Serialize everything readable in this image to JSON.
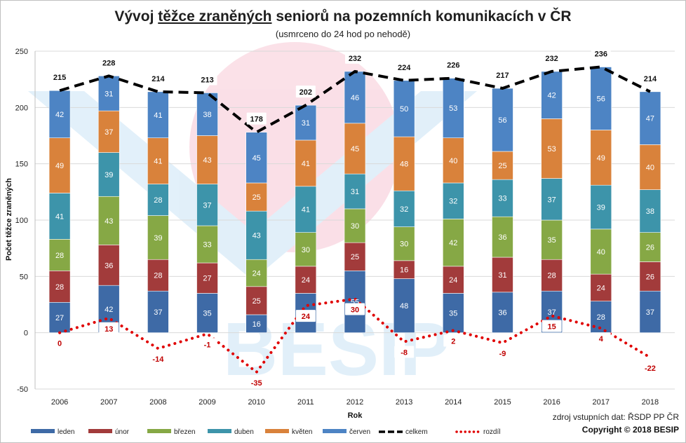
{
  "chart_data": {
    "type": "bar",
    "stacked": true,
    "title_parts": [
      "Vývoj ",
      "těžce zraněných",
      " seniorů na pozemních komunikacích v ČR"
    ],
    "subtitle": "(usmrceno do 24 hod po nehodě)",
    "xlabel": "Rok",
    "ylabel": "Počet těžce zraněných",
    "ylim": [
      -50,
      250
    ],
    "yticks": [
      -50,
      0,
      50,
      100,
      150,
      200,
      250
    ],
    "categories": [
      "2006",
      "2007",
      "2008",
      "2009",
      "2010",
      "2011",
      "2012",
      "2013",
      "2014",
      "2015",
      "2016",
      "2017",
      "2018"
    ],
    "series": [
      {
        "name": "leden",
        "color": "#3e6aa6",
        "values": [
          27,
          42,
          37,
          35,
          16,
          35,
          55,
          48,
          35,
          36,
          37,
          28,
          37
        ]
      },
      {
        "name": "únor",
        "color": "#a23b3b",
        "values": [
          28,
          36,
          28,
          27,
          25,
          24,
          25,
          16,
          24,
          31,
          28,
          24,
          26
        ]
      },
      {
        "name": "březen",
        "color": "#86a845",
        "values": [
          28,
          43,
          39,
          33,
          24,
          30,
          30,
          30,
          42,
          36,
          35,
          40,
          26
        ]
      },
      {
        "name": "duben",
        "color": "#3d94aa",
        "values": [
          41,
          39,
          28,
          37,
          43,
          41,
          31,
          32,
          32,
          33,
          37,
          39,
          38
        ]
      },
      {
        "name": "květen",
        "color": "#d9823b",
        "values": [
          49,
          37,
          41,
          43,
          25,
          41,
          45,
          48,
          40,
          25,
          53,
          49,
          40
        ]
      },
      {
        "name": "červen",
        "color": "#4d84c4",
        "values": [
          42,
          31,
          41,
          38,
          45,
          31,
          46,
          50,
          53,
          56,
          42,
          56,
          47
        ]
      }
    ],
    "lines": [
      {
        "name": "celkem",
        "color": "#000000",
        "style": "dashed",
        "values": [
          215,
          228,
          214,
          213,
          178,
          202,
          232,
          224,
          226,
          217,
          232,
          236,
          214
        ]
      },
      {
        "name": "rozdíl",
        "color": "#e00000",
        "style": "dotted",
        "values": [
          0,
          13,
          -14,
          -1,
          -35,
          24,
          30,
          -8,
          2,
          -9,
          15,
          4,
          -22
        ]
      }
    ],
    "legend_position": "bottom"
  },
  "footer": {
    "source": "zdroj vstupních dat: ŘSDP PP ČR",
    "copyright": "Copyright © 2018 BESIP"
  },
  "watermark": {
    "text": "BESIP"
  }
}
